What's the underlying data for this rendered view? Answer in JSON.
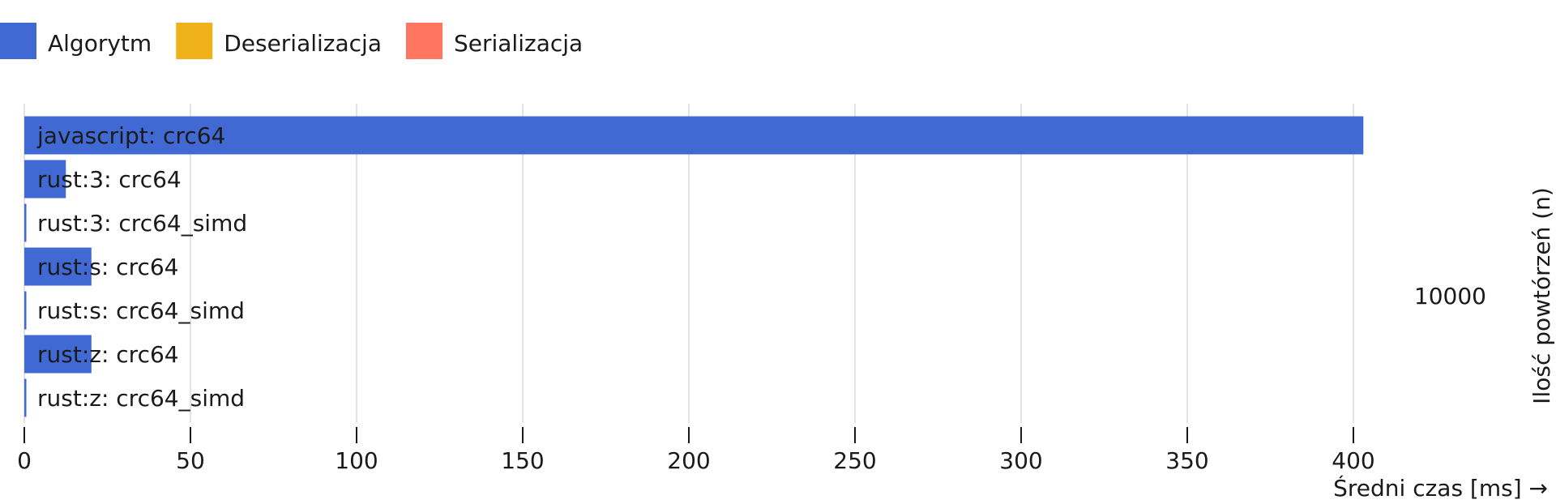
{
  "chart_data": {
    "type": "bar",
    "orientation": "horizontal",
    "legend": {
      "placement": "top-left",
      "entries": [
        {
          "name": "Algorytm",
          "color": "#4169D4"
        },
        {
          "name": "Deserializacja",
          "color": "#F0B21B"
        },
        {
          "name": "Serializacja",
          "color": "#FF7560"
        }
      ]
    },
    "categories": [
      "javascript: crc64",
      "rust:3: crc64",
      "rust:3: crc64_simd",
      "rust:s: crc64",
      "rust:s: crc64_simd",
      "rust:z: crc64",
      "rust:z: crc64_simd"
    ],
    "series": [
      {
        "name": "Algorytm",
        "color": "#4169D4",
        "values": [
          403,
          12.5,
          0.5,
          20.2,
          0.5,
          20.2,
          0.5
        ]
      },
      {
        "name": "Deserializacja",
        "color": "#F0B21B",
        "values": [
          0,
          0,
          0,
          0,
          0,
          0,
          0
        ]
      },
      {
        "name": "Serializacja",
        "color": "#FF7560",
        "values": [
          0,
          0,
          0,
          0,
          0,
          0,
          0
        ]
      }
    ],
    "xlabel": "Średni czas [ms] →",
    "ylabel": "Ilość powtórzeń (n)",
    "group_label": "10000",
    "xlim": [
      0,
      410
    ],
    "xticks": [
      0,
      50,
      100,
      150,
      200,
      250,
      300,
      350,
      400
    ],
    "grid": true
  }
}
